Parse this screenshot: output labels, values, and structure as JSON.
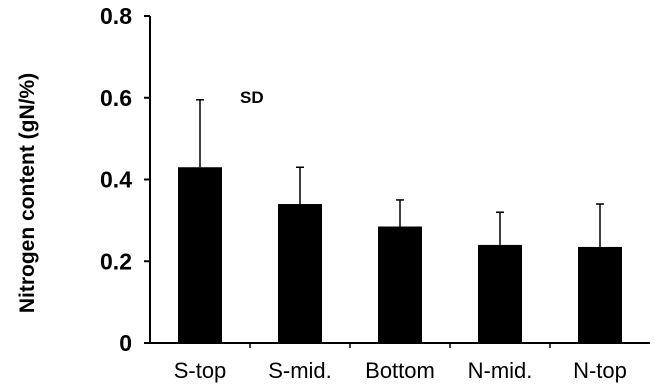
{
  "chart_data": {
    "type": "bar",
    "title": "",
    "xlabel": "",
    "ylabel": "Nitrogen content (gN/%)",
    "ylim": [
      0,
      0.8
    ],
    "yticks": [
      0,
      0.2,
      0.4,
      0.6,
      0.8
    ],
    "ytick_labels": [
      "0",
      "0.2",
      "0.4",
      "0.6",
      "0.8"
    ],
    "categories": [
      "S-top",
      "S-mid.",
      "Bottom",
      "N-mid.",
      "N-top"
    ],
    "values": [
      0.43,
      0.34,
      0.285,
      0.24,
      0.235
    ],
    "error_upper": [
      0.595,
      0.43,
      0.35,
      0.32,
      0.34
    ],
    "annotation": "SD",
    "grid": false,
    "legend": "none",
    "bar_color": "#000000"
  }
}
